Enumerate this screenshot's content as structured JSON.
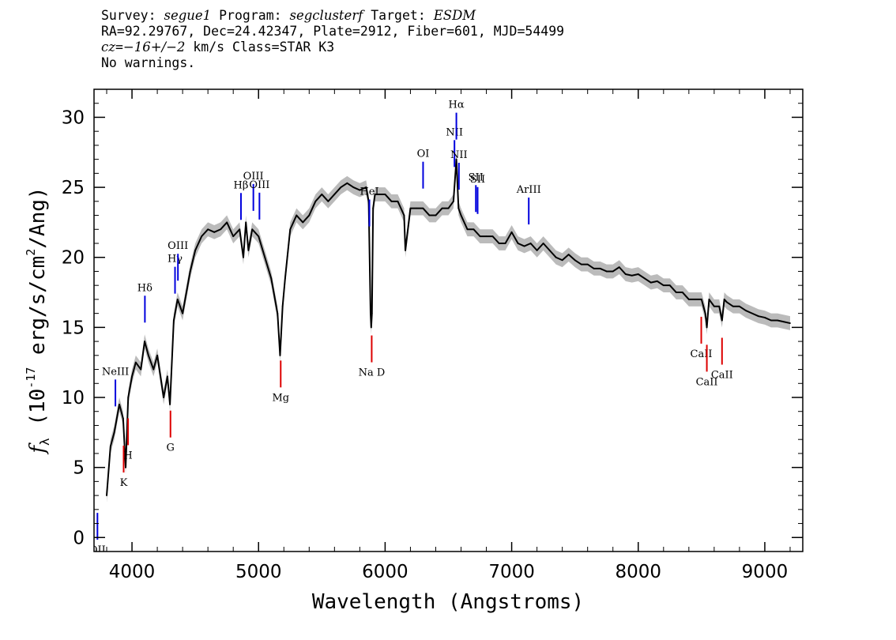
{
  "header": {
    "line1": {
      "survey_label": "Survey: ",
      "survey": "segue1",
      "program_label": " Program: ",
      "program": "segclusterf",
      "target_label": " Target: ",
      "target": "ESDM"
    },
    "line2": "RA=92.29767, Dec=24.42347, Plate=2912, Fiber=601, MJD=54499",
    "line3": {
      "cz_label": "cz",
      "cz_eq": "=",
      "cz_value": "−16+/−2",
      "rest": " km/s Class=STAR K3"
    },
    "line4": "No warnings."
  },
  "chart_data": {
    "type": "line",
    "xlabel": "Wavelength (Angstroms)",
    "ylabel": "f_λ (10^-17 erg/s/cm^2/Ang)",
    "xlim": [
      3700,
      9300
    ],
    "ylim": [
      -1,
      32
    ],
    "x_ticks": [
      4000,
      5000,
      6000,
      7000,
      8000,
      9000
    ],
    "y_ticks": [
      0,
      5,
      10,
      15,
      20,
      25,
      30
    ],
    "series": [
      {
        "color": "#000000",
        "error_band_color": "#bbbbbb",
        "x": [
          3800,
          3830,
          3860,
          3900,
          3930,
          3950,
          3970,
          4000,
          4030,
          4070,
          4100,
          4130,
          4170,
          4200,
          4250,
          4280,
          4300,
          4330,
          4360,
          4400,
          4430,
          4460,
          4500,
          4550,
          4600,
          4650,
          4700,
          4750,
          4800,
          4850,
          4880,
          4900,
          4920,
          4950,
          5000,
          5050,
          5100,
          5150,
          5170,
          5190,
          5210,
          5250,
          5300,
          5350,
          5400,
          5450,
          5500,
          5550,
          5600,
          5650,
          5700,
          5750,
          5800,
          5850,
          5870,
          5885,
          5890,
          5896,
          5905,
          5920,
          5950,
          6000,
          6050,
          6100,
          6150,
          6160,
          6200,
          6250,
          6300,
          6350,
          6400,
          6450,
          6500,
          6540,
          6563,
          6580,
          6600,
          6650,
          6700,
          6750,
          6800,
          6850,
          6900,
          6950,
          7000,
          7050,
          7100,
          7150,
          7200,
          7250,
          7300,
          7350,
          7400,
          7450,
          7500,
          7550,
          7600,
          7650,
          7700,
          7750,
          7800,
          7850,
          7900,
          7950,
          8000,
          8050,
          8100,
          8150,
          8200,
          8250,
          8300,
          8350,
          8400,
          8450,
          8500,
          8530,
          8542,
          8560,
          8600,
          8640,
          8662,
          8680,
          8700,
          8750,
          8800,
          8850,
          8900,
          8950,
          9000,
          9050,
          9100,
          9150,
          9200
        ],
        "y": [
          3.0,
          6.5,
          7.5,
          9.5,
          8.5,
          5.0,
          10.0,
          11.5,
          12.5,
          12.0,
          14.0,
          13.0,
          12.0,
          13.0,
          10.0,
          11.5,
          9.5,
          15.5,
          17.0,
          16.0,
          17.5,
          19.0,
          20.5,
          21.5,
          22.0,
          21.8,
          22.0,
          22.5,
          21.5,
          22.0,
          20.0,
          22.5,
          20.5,
          22.0,
          21.5,
          20.0,
          18.5,
          16.0,
          13.0,
          16.5,
          18.5,
          22.0,
          23.0,
          22.5,
          23.0,
          24.0,
          24.5,
          24.0,
          24.5,
          25.0,
          25.3,
          25.0,
          24.8,
          25.0,
          24.0,
          16.0,
          15.0,
          16.0,
          23.5,
          24.5,
          24.5,
          24.5,
          24.0,
          24.0,
          23.0,
          20.5,
          23.5,
          23.5,
          23.5,
          23.0,
          23.0,
          23.5,
          23.5,
          24.0,
          27.0,
          23.5,
          23.0,
          22.0,
          22.0,
          21.5,
          21.5,
          21.5,
          21.0,
          21.0,
          21.8,
          21.0,
          20.8,
          21.0,
          20.5,
          21.0,
          20.5,
          20.0,
          19.8,
          20.2,
          19.8,
          19.5,
          19.5,
          19.2,
          19.2,
          19.0,
          19.0,
          19.3,
          18.8,
          18.7,
          18.8,
          18.5,
          18.2,
          18.3,
          18.0,
          18.0,
          17.5,
          17.5,
          17.0,
          17.0,
          17.0,
          16.0,
          15.0,
          17.0,
          16.5,
          16.5,
          15.5,
          17.0,
          16.8,
          16.5,
          16.5,
          16.2,
          16.0,
          15.8,
          15.7,
          15.5,
          15.5,
          15.4,
          15.3
        ]
      }
    ],
    "spectral_lines": [
      {
        "label": "OII",
        "wave": 3727,
        "color": "#0000dd",
        "pos": "below"
      },
      {
        "label": "NeIII",
        "wave": 3869,
        "color": "#0000dd",
        "pos": "above"
      },
      {
        "label": "Hδ",
        "wave": 4102,
        "color": "#0000dd",
        "pos": "above"
      },
      {
        "label": "Hγ",
        "wave": 4340,
        "color": "#0000dd",
        "pos": "above"
      },
      {
        "label": "OIII",
        "wave": 4363,
        "color": "#0000dd",
        "pos": "above"
      },
      {
        "label": "Hβ",
        "wave": 4861,
        "color": "#0000dd",
        "pos": "above"
      },
      {
        "label": "OIII",
        "wave": 4959,
        "color": "#0000dd",
        "pos": "above"
      },
      {
        "label": "OIII",
        "wave": 5007,
        "color": "#0000dd",
        "pos": "above"
      },
      {
        "label": "HeI",
        "wave": 5876,
        "color": "#0000dd",
        "pos": "above"
      },
      {
        "label": "OI",
        "wave": 6300,
        "color": "#0000dd",
        "pos": "above"
      },
      {
        "label": "NII",
        "wave": 6548,
        "color": "#0000dd",
        "pos": "above"
      },
      {
        "label": "Hα",
        "wave": 6563,
        "color": "#0000dd",
        "pos": "above"
      },
      {
        "label": "NII",
        "wave": 6583,
        "color": "#0000dd",
        "pos": "above"
      },
      {
        "label": "SII",
        "wave": 6717,
        "color": "#0000dd",
        "pos": "above"
      },
      {
        "label": "SII",
        "wave": 6731,
        "color": "#0000dd",
        "pos": "above"
      },
      {
        "label": "ArIII",
        "wave": 7135,
        "color": "#0000dd",
        "pos": "above"
      },
      {
        "label": "K",
        "wave": 3934,
        "color": "#dd0000",
        "pos": "below"
      },
      {
        "label": "H",
        "wave": 3969,
        "color": "#dd0000",
        "pos": "below"
      },
      {
        "label": "G",
        "wave": 4304,
        "color": "#dd0000",
        "pos": "below"
      },
      {
        "label": "Mg",
        "wave": 5175,
        "color": "#dd0000",
        "pos": "below"
      },
      {
        "label": "Na D",
        "wave": 5894,
        "color": "#dd0000",
        "pos": "below"
      },
      {
        "label": "CaII",
        "wave": 8498,
        "color": "#dd0000",
        "pos": "below"
      },
      {
        "label": "CaII",
        "wave": 8542,
        "color": "#dd0000",
        "pos": "below"
      },
      {
        "label": "CaII",
        "wave": 8662,
        "color": "#dd0000",
        "pos": "below"
      }
    ]
  }
}
